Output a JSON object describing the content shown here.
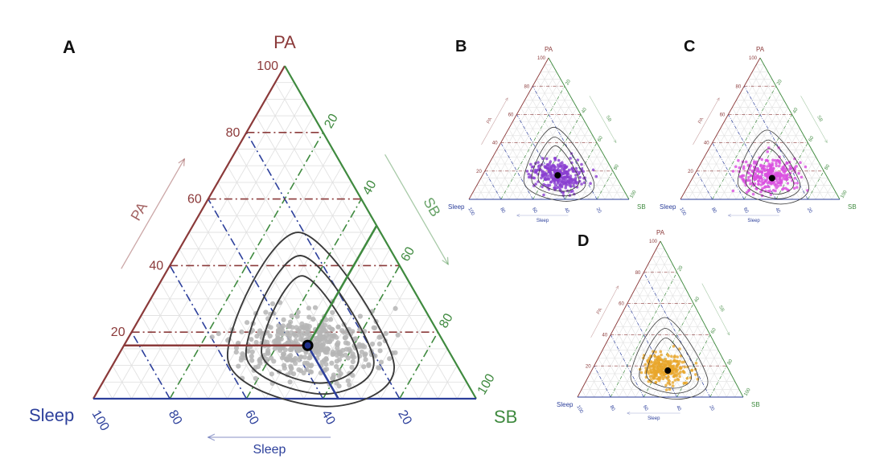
{
  "colors": {
    "pa": "#8b3a3a",
    "sb": "#3f8a3f",
    "sleep": "#2c3f9b",
    "contour": "#3a3a3a",
    "points_A": "#b5b5b5",
    "points_B": "#8a3fd1",
    "points_C": "#d94fe0",
    "points_D": "#e8a62a",
    "mean": "#000000"
  },
  "chart_data": [
    {
      "panel": "A",
      "type": "ternary-scatter",
      "axes": {
        "top": "PA",
        "right": "SB",
        "left": "Sleep"
      },
      "axis_arrows": {
        "pa": "PA",
        "sb": "SB",
        "sleep": "Sleep"
      },
      "ticks": {
        "pa": [
          "20",
          "40",
          "60",
          "80",
          "100"
        ],
        "sb": [
          "20",
          "40",
          "60",
          "80",
          "100"
        ],
        "sleep": [
          "20",
          "40",
          "60",
          "80",
          "100"
        ]
      },
      "mean": {
        "PA": 16,
        "SB": 48,
        "Sleep": 36
      },
      "cloud": {
        "center_PA": 16,
        "center_SB": 48,
        "spread_PA": 5,
        "spread_SB": 9,
        "n": 420
      },
      "contours": [
        "inner",
        "middle",
        "outer"
      ]
    },
    {
      "panel": "B",
      "type": "ternary-scatter",
      "axes": {
        "top": "PA",
        "right": "SB",
        "left": "Sleep"
      },
      "axis_arrows": {
        "pa": "PA",
        "sb": "SB",
        "sleep": "Sleep"
      },
      "ticks": {
        "pa": [
          "20",
          "40",
          "60",
          "80",
          "100"
        ],
        "sb": [
          "20",
          "40",
          "60",
          "80",
          "100"
        ],
        "sleep": [
          "20",
          "40",
          "60",
          "80",
          "100"
        ]
      },
      "mean": {
        "PA": 17,
        "SB": 47,
        "Sleep": 36
      },
      "cloud": {
        "center_PA": 17,
        "center_SB": 47,
        "spread_PA": 5,
        "spread_SB": 8,
        "n": 300
      },
      "contours": [
        "inner",
        "middle",
        "outer"
      ]
    },
    {
      "panel": "C",
      "type": "ternary-scatter",
      "axes": {
        "top": "PA",
        "right": "SB",
        "left": "Sleep"
      },
      "axis_arrows": {
        "pa": "PA",
        "sb": "SB",
        "sleep": "Sleep"
      },
      "ticks": {
        "pa": [
          "20",
          "40",
          "60",
          "80",
          "100"
        ],
        "sb": [
          "20",
          "40",
          "60",
          "80",
          "100"
        ],
        "sleep": [
          "20",
          "40",
          "60",
          "80",
          "100"
        ]
      },
      "mean": {
        "PA": 15,
        "SB": 50,
        "Sleep": 35
      },
      "cloud": {
        "center_PA": 17,
        "center_SB": 48,
        "spread_PA": 6,
        "spread_SB": 9,
        "n": 300
      },
      "contours": [
        "inner",
        "middle",
        "outer"
      ]
    },
    {
      "panel": "D",
      "type": "ternary-scatter",
      "axes": {
        "top": "PA",
        "right": "SB",
        "left": "Sleep"
      },
      "axis_arrows": {
        "pa": "PA",
        "sb": "SB",
        "sleep": "Sleep"
      },
      "ticks": {
        "pa": [
          "20",
          "40",
          "60",
          "80",
          "100"
        ],
        "sb": [
          "20",
          "40",
          "60",
          "80",
          "100"
        ],
        "sleep": [
          "20",
          "40",
          "60",
          "80",
          "100"
        ]
      },
      "mean": {
        "PA": 17,
        "SB": 46,
        "Sleep": 37
      },
      "cloud": {
        "center_PA": 18,
        "center_SB": 44,
        "spread_PA": 5,
        "spread_SB": 7,
        "n": 280
      },
      "contours": [
        "inner",
        "middle",
        "outer"
      ]
    }
  ]
}
